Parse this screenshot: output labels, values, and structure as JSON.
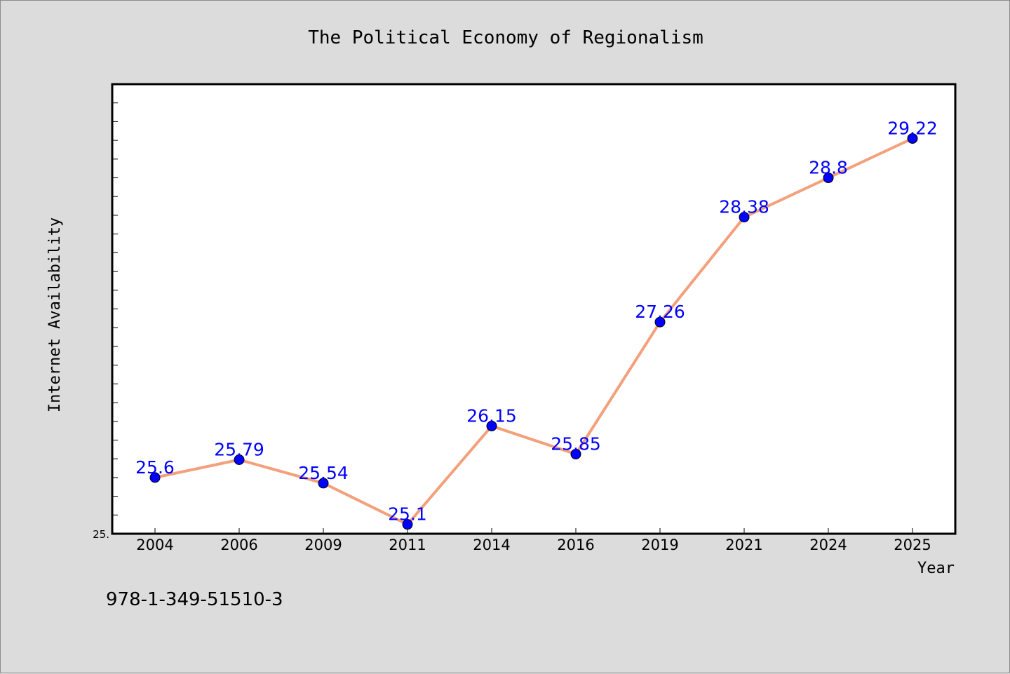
{
  "chart_data": {
    "type": "line",
    "title": "The Political Economy of Regionalism",
    "xlabel": "Year",
    "ylabel": "Internet Availability",
    "categories": [
      "2004",
      "2006",
      "2009",
      "2011",
      "2014",
      "2016",
      "2019",
      "2021",
      "2024",
      "2025"
    ],
    "series": [
      {
        "values": [
          25.6,
          25.79,
          25.54,
          25.1,
          26.15,
          25.85,
          27.26,
          28.38,
          28.8,
          29.22
        ],
        "data_labels": [
          "25.6",
          "25.79",
          "25.54",
          "25.1",
          "26.15",
          "25.85",
          "27.26",
          "28.38",
          "28.8",
          "29.22"
        ]
      }
    ],
    "ylim": [
      25,
      29.8
    ],
    "y_min_label": "25.",
    "grid": false,
    "legend": "none",
    "colors": {
      "line": "#f4a07c",
      "marker": "#0000ff",
      "data_label": "#0000ff",
      "background": "#dcdcdc",
      "plot_background": "#ffffff"
    }
  },
  "footer": {
    "isbn": "978-1-349-51510-3"
  }
}
